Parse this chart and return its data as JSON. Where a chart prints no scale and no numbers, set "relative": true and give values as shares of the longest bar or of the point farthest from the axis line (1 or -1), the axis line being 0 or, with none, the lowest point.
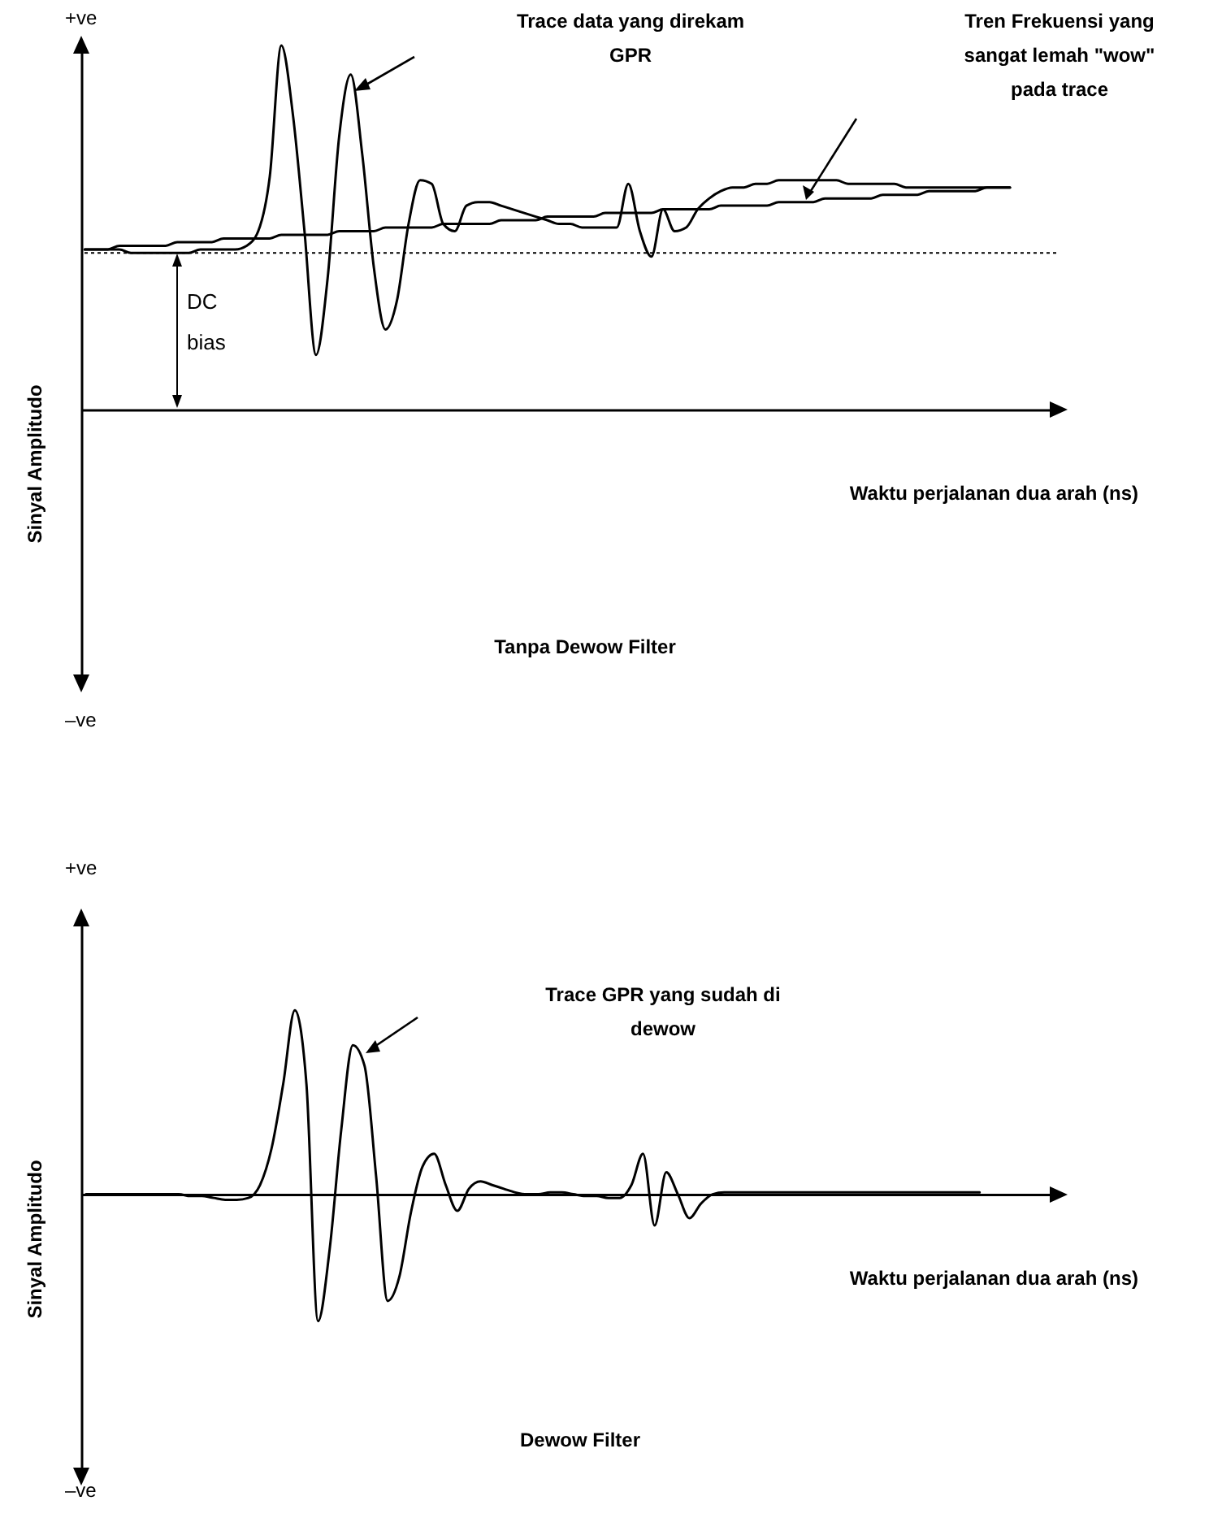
{
  "chart_data": [
    {
      "type": "line",
      "title": "Tanpa Dewow Filter",
      "xlabel": "Waktu perjalanan dua arah (ns)",
      "ylabel": "Sinyal Amplitudo",
      "relative": true,
      "categories": [
        null,
        null,
        null,
        null,
        null,
        null,
        null,
        null,
        null,
        null,
        null,
        null,
        null,
        null,
        null,
        null,
        null,
        null,
        null,
        null,
        null,
        null,
        null,
        null,
        null,
        null,
        null,
        null,
        null,
        null,
        null,
        null,
        null,
        null,
        null,
        null,
        null,
        null,
        null,
        null,
        null,
        null,
        null,
        null,
        null,
        null,
        null,
        null,
        null,
        null,
        null,
        null,
        null,
        null,
        null,
        null,
        null,
        null,
        null,
        null,
        null,
        null,
        null,
        null,
        null,
        null,
        null,
        null,
        null,
        null,
        null,
        null,
        null,
        null,
        null,
        null,
        null,
        null,
        null,
        null,
        null
      ],
      "series": [
        {
          "color": "#000000",
          "values": [
            0.44,
            0.44,
            0.44,
            0.44,
            0.43,
            0.43,
            0.43,
            0.43,
            0.43,
            0.43,
            0.44,
            0.44,
            0.44,
            0.44,
            0.45,
            0.49,
            0.64,
            1,
            0.81,
            0.49,
            0.15,
            0.36,
            0.75,
            0.92,
            0.7,
            0.39,
            0.22,
            0.3,
            0.51,
            0.63,
            0.62,
            0.51,
            0.49,
            0.56,
            0.57,
            0.57,
            0.56,
            0.55,
            0.54,
            0.53,
            0.52,
            0.51,
            0.51,
            0.5,
            0.5,
            0.5,
            0.5,
            0.62,
            0.49,
            0.42,
            0.55,
            0.49,
            0.5,
            0.55,
            0.58,
            0.6,
            0.61,
            0.61,
            0.62,
            0.62,
            0.63,
            0.63,
            0.63,
            0.63,
            0.63,
            0.63,
            0.62,
            0.62,
            0.62,
            0.62,
            0.62,
            0.61,
            0.61,
            0.61,
            0.61,
            0.61,
            0.61,
            0.61,
            0.61,
            0.61,
            0.61
          ]
        },
        {
          "color": "#000000",
          "values": [
            0.44,
            0.44,
            0.44,
            0.45,
            0.45,
            0.45,
            0.45,
            0.45,
            0.46,
            0.46,
            0.46,
            0.46,
            0.47,
            0.47,
            0.47,
            0.47,
            0.47,
            0.48,
            0.48,
            0.48,
            0.48,
            0.48,
            0.49,
            0.49,
            0.49,
            0.49,
            0.5,
            0.5,
            0.5,
            0.5,
            0.5,
            0.51,
            0.51,
            0.51,
            0.51,
            0.51,
            0.52,
            0.52,
            0.52,
            0.52,
            0.53,
            0.53,
            0.53,
            0.53,
            0.53,
            0.54,
            0.54,
            0.54,
            0.54,
            0.54,
            0.55,
            0.55,
            0.55,
            0.55,
            0.55,
            0.56,
            0.56,
            0.56,
            0.56,
            0.56,
            0.57,
            0.57,
            0.57,
            0.57,
            0.58,
            0.58,
            0.58,
            0.58,
            0.58,
            0.59,
            0.59,
            0.59,
            0.59,
            0.6,
            0.6,
            0.6,
            0.6,
            0.6,
            0.61,
            0.61,
            0.61
          ]
        }
      ],
      "ref_lines": [
        {
          "axis": "y",
          "value": 0.43,
          "label": "DC bias",
          "line_style": "dotted"
        }
      ],
      "annotations": [
        "+ve",
        "–ve",
        "Trace data yang direkam GPR",
        "Tren Frekuensi yang sangat lemah \"wow\" pada trace"
      ]
    },
    {
      "type": "line",
      "title": "Dewow Filter",
      "xlabel": "Waktu perjalanan dua arah (ns)",
      "ylabel": "Sinyal Amplitudo",
      "relative": true,
      "categories": [
        null,
        null,
        null,
        null,
        null,
        null,
        null,
        null,
        null,
        null,
        null,
        null,
        null,
        null,
        null,
        null,
        null,
        null,
        null,
        null,
        null,
        null,
        null,
        null,
        null,
        null,
        null,
        null,
        null,
        null,
        null,
        null,
        null,
        null,
        null,
        null,
        null,
        null,
        null,
        null,
        null,
        null,
        null,
        null,
        null,
        null,
        null,
        null,
        null,
        null,
        null,
        null,
        null,
        null,
        null,
        null,
        null,
        null,
        null,
        null,
        null,
        null,
        null,
        null,
        null,
        null,
        null,
        null,
        null,
        null,
        null,
        null,
        null,
        null,
        null,
        null,
        null,
        null
      ],
      "series": [
        {
          "color": "#000000",
          "values": [
            0,
            0,
            0,
            0,
            0,
            0,
            0,
            0,
            0,
            -0.01,
            -0.01,
            -0.02,
            -0.03,
            -0.03,
            -0.02,
            0.05,
            0.25,
            0.6,
            1,
            0.6,
            -0.69,
            -0.3,
            0.35,
            0.81,
            0.7,
            0.1,
            -0.58,
            -0.45,
            -0.1,
            0.15,
            0.22,
            0.05,
            -0.09,
            0.03,
            0.07,
            0.05,
            0.03,
            0.01,
            0,
            0,
            0.01,
            0.01,
            0,
            -0.01,
            -0.01,
            -0.02,
            -0.02,
            0.05,
            0.22,
            -0.17,
            0.12,
            0,
            -0.13,
            -0.05,
            0,
            0.01,
            0.01,
            0.01,
            0.01,
            0.01,
            0.01,
            0.01,
            0.01,
            0.01,
            0.01,
            0.01,
            0.01,
            0.01,
            0.01,
            0.01,
            0.01,
            0.01,
            0.01,
            0.01,
            0.01,
            0.01,
            0.01,
            0.01
          ]
        }
      ],
      "annotations": [
        "+ve",
        "–ve",
        "Trace GPR yang sudah di dewow"
      ]
    }
  ]
}
